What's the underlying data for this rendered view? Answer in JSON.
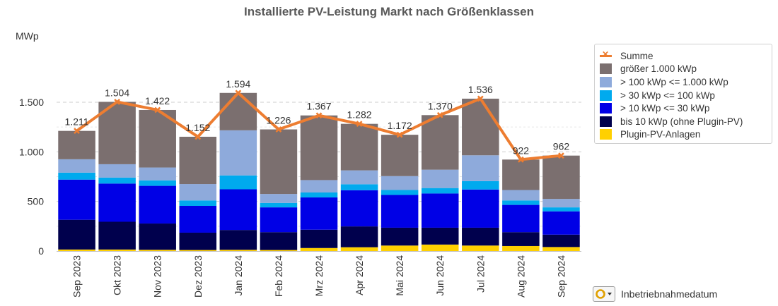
{
  "chart_data": {
    "type": "bar",
    "stacked": true,
    "title": "Installierte PV-Leistung Markt nach Größenklassen",
    "ylabel": "MWp",
    "ylim": [
      0,
      1500
    ],
    "yticks": [
      0,
      500,
      1000,
      1500
    ],
    "ytick_labels": [
      "0",
      "500",
      "1.000",
      "1.500"
    ],
    "grid": true,
    "legend_position": "right",
    "categories": [
      "Sep 2023",
      "Okt 2023",
      "Nov 2023",
      "Dez 2023",
      "Jan 2024",
      "Feb 2024",
      "Mrz 2024",
      "Apr 2024",
      "Mai 2024",
      "Jun 2024",
      "Jul 2024",
      "Aug 2024",
      "Sep 2024"
    ],
    "series": [
      {
        "name": "Plugin-PV-Anlagen",
        "color": "#ffd000",
        "values": [
          15,
          15,
          12,
          10,
          12,
          10,
          30,
          38,
          55,
          65,
          55,
          50,
          40
        ]
      },
      {
        "name": "bis 10 kWp (ohne Plugin-PV)",
        "color": "#00004d",
        "values": [
          300,
          280,
          265,
          175,
          200,
          180,
          185,
          210,
          180,
          170,
          180,
          140,
          125
        ]
      },
      {
        "name": "> 10 kWp <= 30 kWp",
        "color": "#0000e6",
        "values": [
          405,
          385,
          380,
          270,
          410,
          250,
          325,
          365,
          330,
          345,
          385,
          275,
          235
        ]
      },
      {
        "name": "> 30 kWp <= 100 kWp",
        "color": "#00aaee",
        "values": [
          70,
          60,
          55,
          55,
          140,
          45,
          50,
          60,
          50,
          55,
          85,
          45,
          40
        ]
      },
      {
        "name": "> 100 kWp <= 1.000 kWp",
        "color": "#8eaadb",
        "values": [
          135,
          135,
          130,
          165,
          455,
          90,
          125,
          140,
          140,
          185,
          260,
          105,
          85
        ]
      },
      {
        "name": "größer 1.000 kWp",
        "color": "#7b6f6f",
        "values": [
          286,
          629,
          580,
          477,
          377,
          651,
          652,
          469,
          417,
          550,
          571,
          307,
          437
        ]
      }
    ],
    "line": {
      "name": "Summe",
      "color": "#ed7d31",
      "values": [
        1211,
        1504,
        1422,
        1152,
        1594,
        1226,
        1367,
        1282,
        1172,
        1370,
        1536,
        922,
        962
      ],
      "labels": [
        "1.211",
        "1.504",
        "1.422",
        "1.152",
        "1.594",
        "1.226",
        "1.367",
        "1.282",
        "1.172",
        "1.370",
        "1.536",
        "922",
        "962"
      ]
    }
  },
  "legend": {
    "items": [
      {
        "label": "Summe",
        "kind": "line",
        "color": "#ed7d31"
      },
      {
        "label": "größer 1.000 kWp",
        "kind": "box",
        "color": "#7b6f6f"
      },
      {
        "label": "> 100 kWp <= 1.000 kWp",
        "kind": "box",
        "color": "#8eaadb"
      },
      {
        "label": "> 30 kWp <= 100 kWp",
        "kind": "box",
        "color": "#00aaee"
      },
      {
        "label": "> 10 kWp <= 30 kWp",
        "kind": "box",
        "color": "#0000e6"
      },
      {
        "label": "bis 10 kWp (ohne Plugin-PV)",
        "kind": "box",
        "color": "#00004d"
      },
      {
        "label": "Plugin-PV-Anlagen",
        "kind": "box",
        "color": "#ffd000"
      }
    ]
  },
  "filter": {
    "label": "Inbetriebnahmedatum",
    "icon": "date-filter-icon"
  }
}
